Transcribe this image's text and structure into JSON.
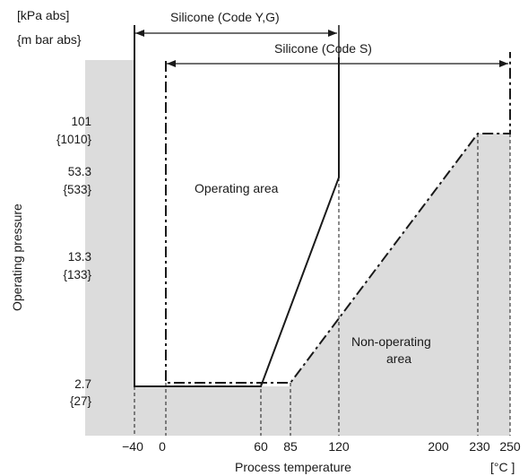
{
  "units": {
    "kpa": "[kPa  abs]",
    "mbar": "{m bar abs}",
    "temp": "[°C ]"
  },
  "axes": {
    "ylabel": "Operating  pressure",
    "xlabel": "Process temperature"
  },
  "regions": {
    "operating": "Operating area",
    "non_operating_1": "Non-operating",
    "non_operating_2": "area"
  },
  "ranges": {
    "yg": "Silicone (Code Y,G)",
    "s": "Silicone (Code S)"
  },
  "y_ticks": [
    {
      "kpa": "101",
      "mbar": "{1010}"
    },
    {
      "kpa": "53.3",
      "mbar": "{533}"
    },
    {
      "kpa": "13.3",
      "mbar": "{133}"
    },
    {
      "kpa": "2.7",
      "mbar": "{27}"
    }
  ],
  "x_ticks": [
    "−40",
    "0",
    "60",
    "85",
    "120",
    "200",
    "230",
    "250"
  ],
  "colors": {
    "shade": "#dcdcdc",
    "line": "#1a1a1a"
  }
}
